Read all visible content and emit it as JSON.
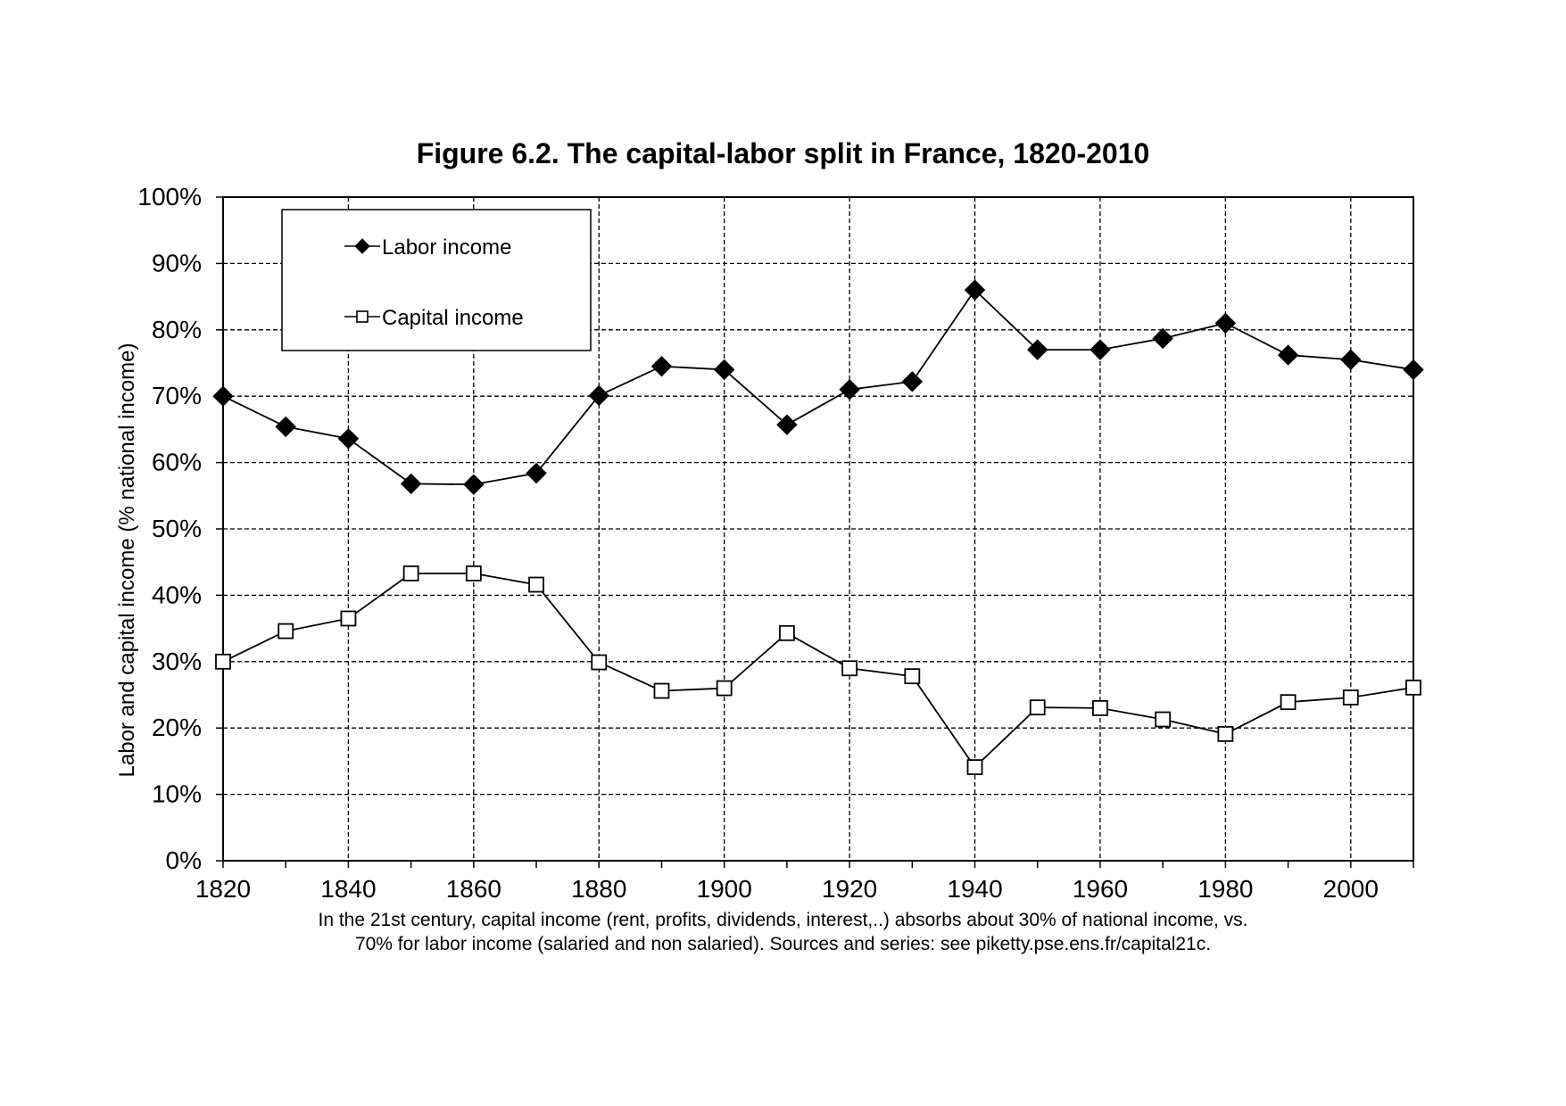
{
  "chart_data": {
    "type": "line",
    "title": "Figure 6.2. The capital-labor split in France, 1820-2010",
    "xlabel": "",
    "ylabel": "Labor and capital income (% national income)",
    "x": [
      1820,
      1830,
      1840,
      1850,
      1860,
      1870,
      1880,
      1890,
      1900,
      1910,
      1920,
      1930,
      1940,
      1950,
      1960,
      1970,
      1980,
      1990,
      2000,
      2010
    ],
    "xlim": [
      1820,
      2010
    ],
    "ylim": [
      0,
      100
    ],
    "x_ticks": [
      "1820",
      "1840",
      "1860",
      "1880",
      "1900",
      "1920",
      "1940",
      "1960",
      "1980",
      "2000"
    ],
    "x_tick_values": [
      1820,
      1840,
      1860,
      1880,
      1900,
      1920,
      1940,
      1960,
      1980,
      2000
    ],
    "x_grid_values": [
      1820,
      1840,
      1860,
      1880,
      1900,
      1920,
      1940,
      1960,
      1980,
      2000
    ],
    "y_ticks": [
      "0%",
      "10%",
      "20%",
      "30%",
      "40%",
      "50%",
      "60%",
      "70%",
      "80%",
      "90%",
      "100%"
    ],
    "y_tick_values": [
      0,
      10,
      20,
      30,
      40,
      50,
      60,
      70,
      80,
      90,
      100
    ],
    "grid": true,
    "legend_position": "top-left",
    "series": [
      {
        "name": "Labor income",
        "marker": "filled-diamond",
        "values": [
          70.0,
          65.4,
          63.6,
          56.8,
          56.7,
          58.4,
          70.1,
          74.5,
          74.0,
          65.7,
          71.0,
          72.2,
          86.0,
          77.0,
          77.0,
          78.7,
          81.0,
          76.2,
          75.5,
          74.0
        ]
      },
      {
        "name": "Capital income",
        "marker": "open-square",
        "values": [
          30.0,
          34.6,
          36.5,
          43.3,
          43.3,
          41.6,
          29.9,
          25.6,
          26.0,
          34.3,
          29.0,
          27.8,
          14.1,
          23.1,
          23.0,
          21.3,
          19.1,
          23.9,
          24.6,
          26.1
        ]
      }
    ],
    "caption": [
      "In the 21st century, capital income (rent, profits, dividends, interest,..) absorbs about 30% of national income, vs.",
      "70% for labor income (salaried and non salaried). Sources and series: see piketty.pse.ens.fr/capital21c."
    ],
    "colors": {
      "line": "#000000",
      "marker_fill_labor": "#000000",
      "marker_fill_capital": "#ffffff",
      "grid": "#000000",
      "background": "#ffffff"
    }
  }
}
